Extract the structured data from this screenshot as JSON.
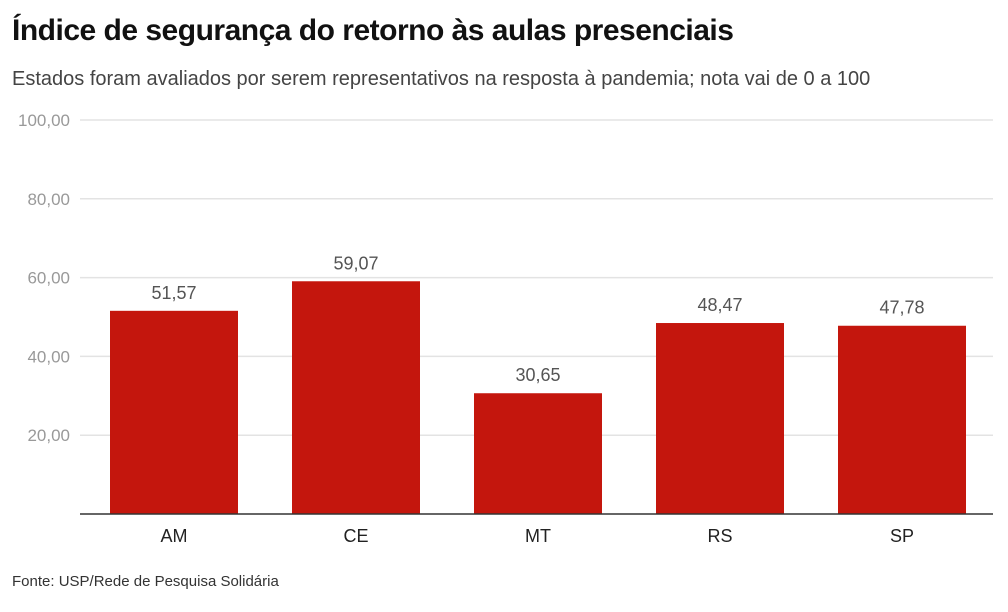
{
  "chart_data": {
    "type": "bar",
    "title": "Índice de segurança do retorno às aulas presenciais",
    "subtitle": "Estados foram avaliados por serem representativos na resposta à pandemia; nota vai de 0 a 100",
    "source": "Fonte: USP/Rede de Pesquisa Solidária",
    "categories": [
      "AM",
      "CE",
      "MT",
      "RS",
      "SP"
    ],
    "values": [
      51.57,
      59.07,
      30.65,
      48.47,
      47.78
    ],
    "value_labels": [
      "51,57",
      "59,07",
      "30,65",
      "48,47",
      "47,78"
    ],
    "yticks": [
      "20,00",
      "40,00",
      "60,00",
      "80,00",
      "100,00"
    ],
    "ytick_values": [
      20,
      40,
      60,
      80,
      100
    ],
    "ylim": [
      0,
      100
    ],
    "xlabel": "",
    "ylabel": "",
    "grid": true,
    "bar_color": "#c4160d"
  }
}
